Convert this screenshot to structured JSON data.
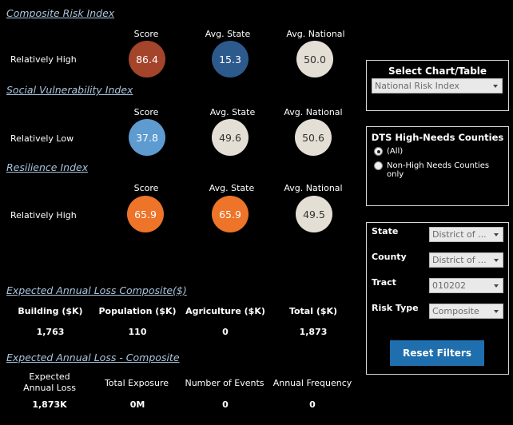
{
  "composite": {
    "title": "Composite Risk Index",
    "rating": "Relatively High",
    "headers": [
      "Score",
      "Avg. State",
      "Avg. National"
    ],
    "values": [
      "86.4",
      "15.3",
      "50.0"
    ],
    "colors": [
      "#a4442a",
      "#2d5a8c",
      "#e4dfd4"
    ]
  },
  "social": {
    "title": "Social Vulnerability Index",
    "rating": "Relatively Low",
    "headers": [
      "Score",
      "Avg. State",
      "Avg. National"
    ],
    "values": [
      "37.8",
      "49.6",
      "50.6"
    ],
    "colors": [
      "#5d9bd0",
      "#e4dfd4",
      "#e4dfd4"
    ]
  },
  "resilience": {
    "title": "Resilience Index",
    "rating": "Relatively High",
    "headers": [
      "Score",
      "Avg. State",
      "Avg. National"
    ],
    "values": [
      "65.9",
      "65.9",
      "49.5"
    ],
    "colors": [
      "#ed7428",
      "#ed7428",
      "#e4dfd4"
    ]
  },
  "eal_composite": {
    "title": "Expected Annual Loss Composite($)",
    "headers": [
      "Building ($K)",
      "Population ($K)",
      "Agriculture ($K)",
      "Total ($K)"
    ],
    "values": [
      "1,763",
      "110",
      "0",
      "1,873"
    ]
  },
  "eal_detail": {
    "title": "Expected Annual Loss - Composite",
    "headers": [
      "Expected Annual Loss",
      "Total Exposure",
      "Number of Events",
      "Annual Frequency"
    ],
    "values": [
      "1,873K",
      "0M",
      "0",
      "0"
    ]
  },
  "chart_select": {
    "title": "Select Chart/Table",
    "value": "National Risk Index"
  },
  "dts": {
    "title": "DTS High-Needs Counties",
    "options": [
      "(All)",
      "Non-High Needs Counties only"
    ],
    "selected": 0
  },
  "filters": {
    "state": {
      "label": "State",
      "value": "District of ..."
    },
    "county": {
      "label": "County",
      "value": "District of ..."
    },
    "tract": {
      "label": "Tract",
      "value": "010202"
    },
    "risk_type": {
      "label": "Risk Type",
      "value": "Composite"
    },
    "reset_label": "Reset Filters"
  },
  "text_colors": {
    "dark_circle": "#ffffff",
    "light_circle": "#333333"
  }
}
